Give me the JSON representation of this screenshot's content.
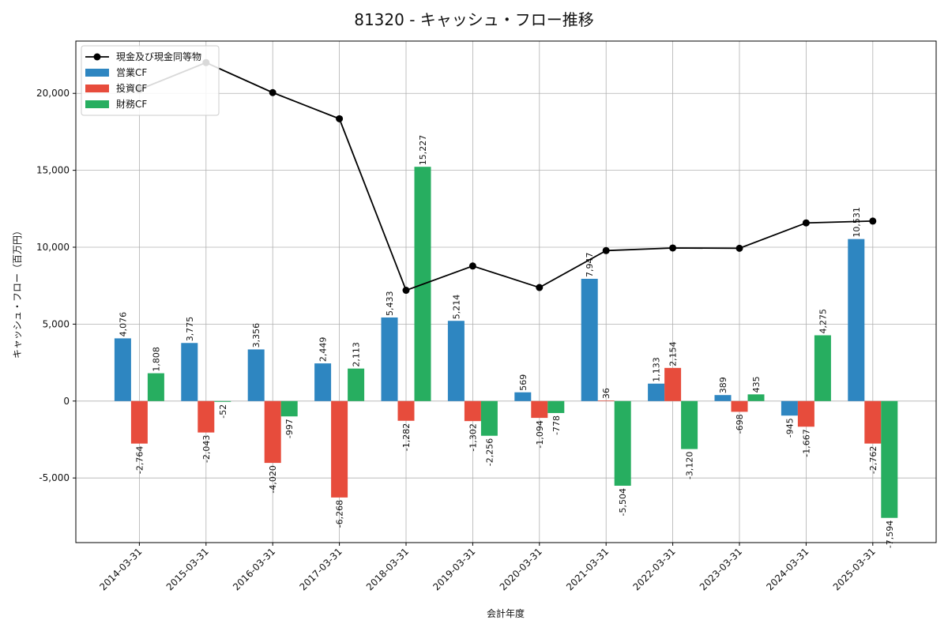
{
  "chart_data": {
    "type": "bar",
    "title": "81320 - キャッシュ・フロー推移",
    "xlabel": "会計年度",
    "ylabel": "キャッシュ・フロー（百万円）",
    "categories": [
      "2014-03-31",
      "2015-03-31",
      "2016-03-31",
      "2017-03-31",
      "2018-03-31",
      "2019-03-31",
      "2020-03-31",
      "2021-03-31",
      "2022-03-31",
      "2023-03-31",
      "2024-03-31",
      "2025-03-31"
    ],
    "ylim": [
      -9200,
      23400
    ],
    "yticks": [
      -5000,
      0,
      5000,
      10000,
      15000,
      20000
    ],
    "ytick_labels": [
      "-5,000",
      "0",
      "5,000",
      "10,000",
      "15,000",
      "20,000"
    ],
    "grid": true,
    "legend_position": "top-left",
    "series": [
      {
        "name": "営業CF",
        "kind": "bar",
        "color": "#2e86c1",
        "values": [
          4076,
          3775,
          3356,
          2449,
          5433,
          5214,
          569,
          7947,
          1133,
          389,
          -945,
          10531
        ],
        "labels": [
          "4,076",
          "3,775",
          "3,356",
          "2,449",
          "5,433",
          "5,214",
          "569",
          "7,947",
          "1,133",
          "389",
          "-945",
          "10,531"
        ]
      },
      {
        "name": "投資CF",
        "kind": "bar",
        "color": "#e74c3c",
        "values": [
          -2764,
          -2043,
          -4020,
          -6268,
          -1282,
          -1302,
          -1094,
          36,
          2154,
          -698,
          -1667,
          -2762
        ],
        "labels": [
          "-2,764",
          "-2,043",
          "-4,020",
          "-6,268",
          "-1,282",
          "-1,302",
          "-1,094",
          "36",
          "2,154",
          "-698",
          "-1,667",
          "-2,762"
        ]
      },
      {
        "name": "財務CF",
        "kind": "bar",
        "color": "#27ae60",
        "values": [
          1808,
          -52,
          -997,
          2113,
          15227,
          -2256,
          -778,
          -5504,
          -3120,
          435,
          4275,
          -7594
        ],
        "labels": [
          "1,808",
          "-52",
          "-997",
          "2,113",
          "15,227",
          "-2,256",
          "-778",
          "-5,504",
          "-3,120",
          "435",
          "4,275",
          "-7,594"
        ]
      },
      {
        "name": "現金及び現金同等物",
        "kind": "line",
        "color": "#000000",
        "values": [
          20250,
          22000,
          20050,
          18350,
          7200,
          8780,
          7380,
          9780,
          9950,
          9930,
          11580,
          11700
        ]
      }
    ]
  }
}
